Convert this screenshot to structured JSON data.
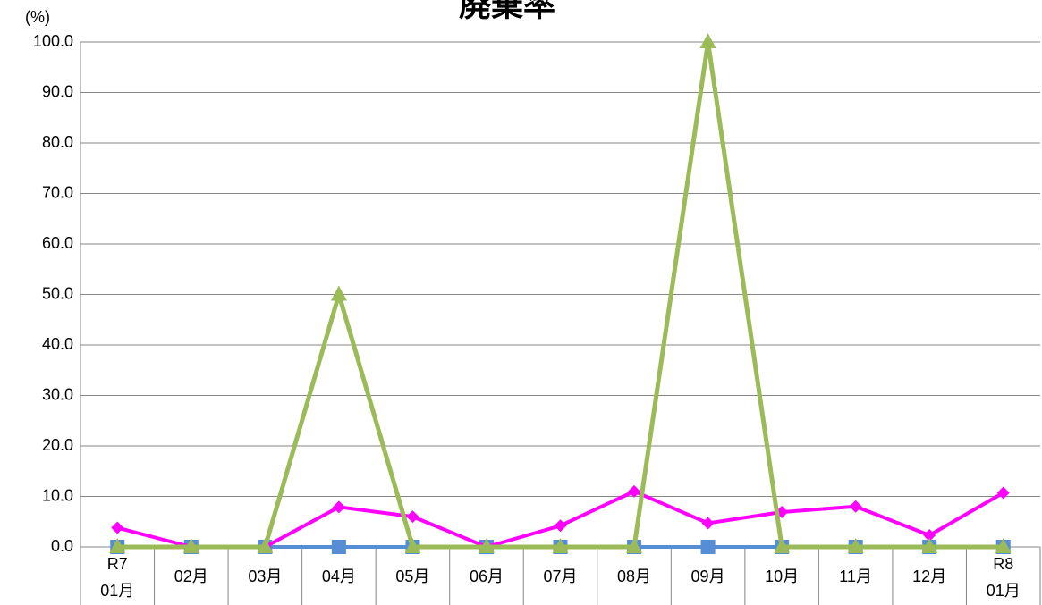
{
  "chart_data": {
    "type": "line",
    "title": "廃棄率",
    "y_label": "(%)",
    "categories": [
      [
        "R7",
        "01月"
      ],
      [
        "02月"
      ],
      [
        "03月"
      ],
      [
        "04月"
      ],
      [
        "05月"
      ],
      [
        "06月"
      ],
      [
        "07月"
      ],
      [
        "08月"
      ],
      [
        "09月"
      ],
      [
        "10月"
      ],
      [
        "11月"
      ],
      [
        "12月"
      ],
      [
        "R8",
        "01月"
      ]
    ],
    "series": [
      {
        "color": "#558ed5",
        "marker": "square",
        "values": [
          0,
          0,
          0,
          0,
          0,
          0,
          0,
          0,
          0,
          0,
          0,
          0,
          0
        ]
      },
      {
        "color": "#ff00ff",
        "marker": "diamond",
        "values": [
          3.8,
          0,
          0,
          7.9,
          6.0,
          0,
          4.2,
          11.0,
          4.7,
          6.9,
          8.0,
          2.3,
          10.7
        ]
      },
      {
        "color": "#9bbb59",
        "marker": "triangle",
        "values": [
          0,
          0,
          0,
          50,
          0,
          0,
          0,
          0,
          100,
          0,
          0,
          0,
          0
        ]
      }
    ],
    "ylim": [
      0,
      100
    ],
    "yticks": [
      {
        "value": 0,
        "label": "0.0"
      },
      {
        "value": 10,
        "label": "10.0"
      },
      {
        "value": 20,
        "label": "20.0"
      },
      {
        "value": 30,
        "label": "30.0"
      },
      {
        "value": 40,
        "label": "40.0"
      },
      {
        "value": 50,
        "label": "50.0"
      },
      {
        "value": 60,
        "label": "60.0"
      },
      {
        "value": 70,
        "label": "70.0"
      },
      {
        "value": 80,
        "label": "80.0"
      },
      {
        "value": 90,
        "label": "90.0"
      },
      {
        "value": 100,
        "label": "100.0"
      }
    ],
    "grid": true
  }
}
